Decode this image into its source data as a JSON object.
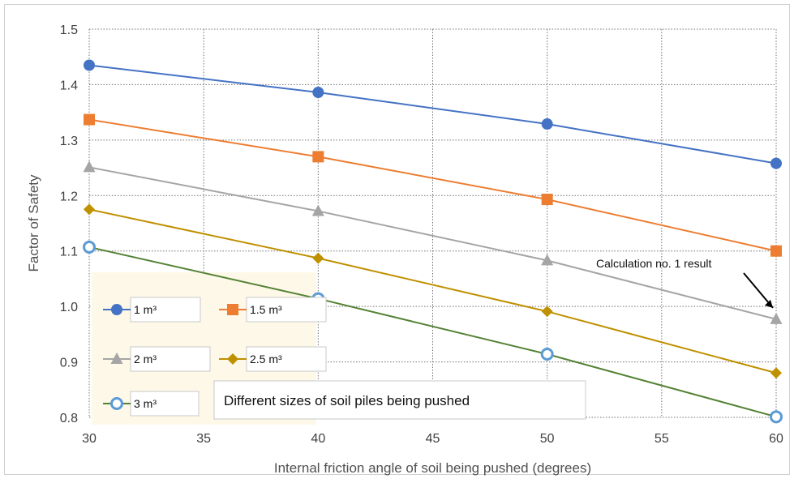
{
  "chart_data": {
    "type": "line",
    "xlabel": "Internal friction angle of soil being pushed (degrees)",
    "ylabel": "Factor of Safety",
    "xlim": [
      30,
      60
    ],
    "ylim": [
      0.8,
      1.5
    ],
    "x_ticks": [
      "30",
      "35",
      "40",
      "45",
      "50",
      "55",
      "60"
    ],
    "y_ticks": [
      "0.8",
      "0.9",
      "1.0",
      "1.1",
      "1.2",
      "1.3",
      "1.4",
      "1.5"
    ],
    "grid": true,
    "x": [
      30,
      40,
      50,
      60
    ],
    "series": [
      {
        "name": "1 m³",
        "values": [
          1.435,
          1.386,
          1.329,
          1.258
        ],
        "color": "#4472C4",
        "marker": "circle"
      },
      {
        "name": "1.5 m³",
        "values": [
          1.337,
          1.27,
          1.193,
          1.1
        ],
        "color": "#ED7D31",
        "marker": "square"
      },
      {
        "name": "2 m³",
        "values": [
          1.251,
          1.172,
          1.083,
          0.977
        ],
        "color": "#A5A5A5",
        "marker": "triangle"
      },
      {
        "name": "2.5 m³",
        "values": [
          1.175,
          1.087,
          0.991,
          0.88
        ],
        "color": "#BF9000",
        "marker": "diamond"
      },
      {
        "name": "3 m³",
        "values": [
          1.107,
          1.014,
          0.914,
          0.801
        ],
        "color": "#5B9BD5",
        "line_color": "#548235",
        "marker": "open-circle"
      }
    ],
    "legend": {
      "placement": "bottom-left",
      "background": "#FDF8E8"
    },
    "annotations": [
      {
        "text": "Calculation no. 1 result",
        "x": 60,
        "y": 0.977
      }
    ],
    "caption": "Different sizes of soil piles being pushed"
  }
}
